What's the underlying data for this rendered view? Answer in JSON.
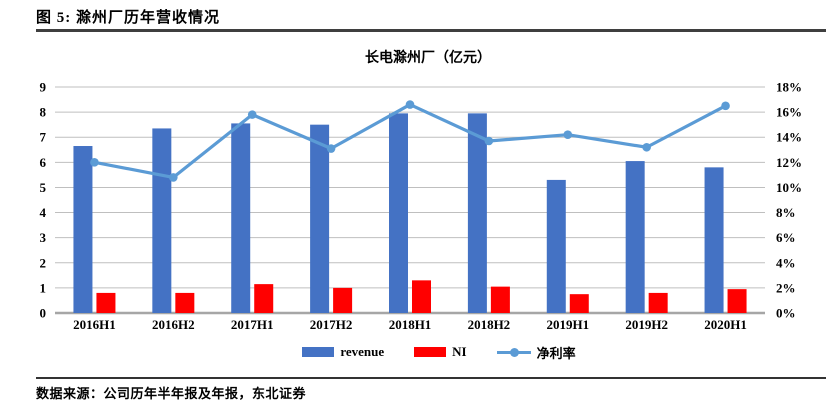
{
  "header": {
    "title": "图 5: 滁州厂历年营收情况"
  },
  "footer": {
    "source": "数据来源：公司历年半年报及年报，东北证券"
  },
  "colors": {
    "revenue_bar": "#4472C4",
    "ni_bar": "#FF0000",
    "margin_line": "#5B9BD5",
    "gridline": "#BFBFBF",
    "axis_line": "#A6A6A6"
  },
  "legend": {
    "revenue_label": "revenue",
    "ni_label": "NI",
    "margin_label": "净利率"
  },
  "chart_data": {
    "type": "bar+line",
    "title": "长电滁州厂（亿元）",
    "categories": [
      "2016H1",
      "2016H2",
      "2017H1",
      "2017H2",
      "2018H1",
      "2018H2",
      "2019H1",
      "2019H2",
      "2020H1"
    ],
    "series": [
      {
        "name": "revenue",
        "type": "bar",
        "axis": "left",
        "color": "#4472C4",
        "values": [
          6.65,
          7.35,
          7.55,
          7.5,
          7.95,
          7.95,
          5.3,
          6.05,
          5.8
        ]
      },
      {
        "name": "NI",
        "type": "bar",
        "axis": "left",
        "color": "#FF0000",
        "values": [
          0.8,
          0.8,
          1.15,
          1.0,
          1.3,
          1.05,
          0.75,
          0.8,
          0.95
        ]
      },
      {
        "name": "净利率",
        "type": "line",
        "axis": "right",
        "color": "#5B9BD5",
        "values": [
          12.0,
          10.8,
          15.8,
          13.1,
          16.6,
          13.7,
          14.2,
          13.2,
          16.5
        ]
      }
    ],
    "left_axis": {
      "min": 0,
      "max": 9,
      "step": 1,
      "tick_labels": [
        "0",
        "1",
        "2",
        "3",
        "4",
        "5",
        "6",
        "7",
        "8",
        "9"
      ]
    },
    "right_axis": {
      "min": 0,
      "max": 18,
      "step": 2,
      "tick_labels": [
        "0%",
        "2%",
        "4%",
        "6%",
        "8%",
        "10%",
        "12%",
        "14%",
        "16%",
        "18%"
      ]
    },
    "grid": true,
    "legend_position": "bottom"
  }
}
